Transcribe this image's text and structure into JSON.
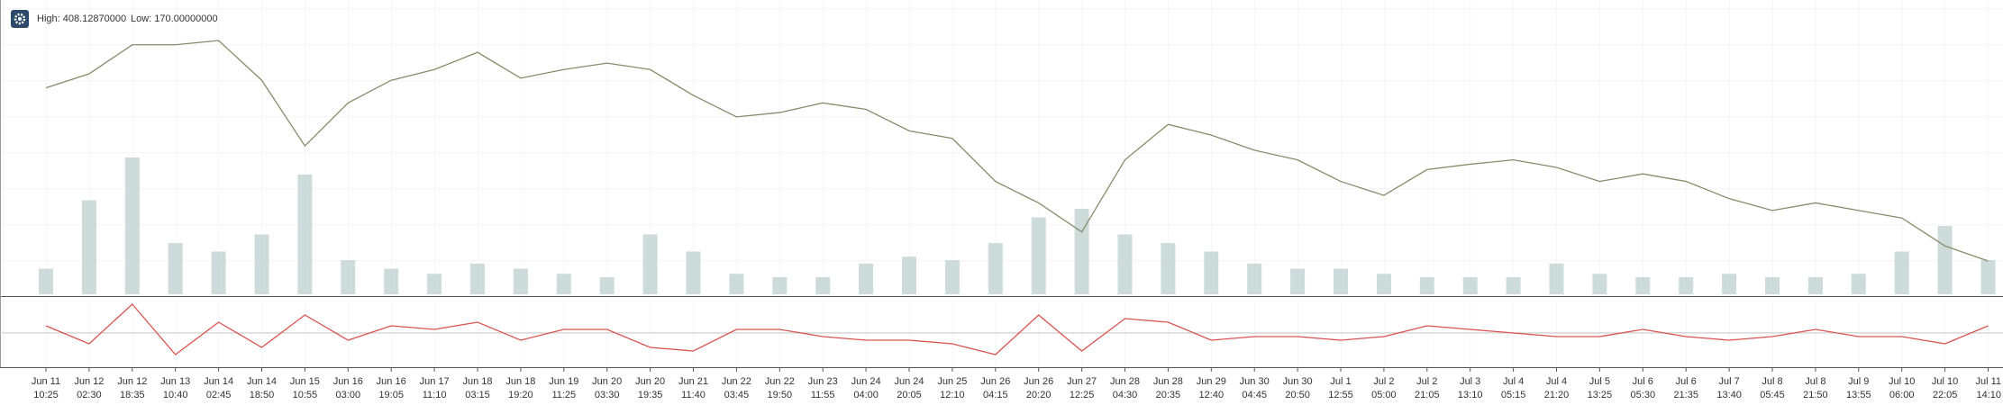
{
  "header": {
    "high": "High: 408.12870000",
    "low": "Low: 170.00000000"
  },
  "chart_data": [
    {
      "type": "line",
      "color": "#8a8a6a",
      "values": [
        348,
        361,
        388,
        388,
        392,
        355,
        294,
        334,
        355,
        365,
        381,
        357,
        365,
        371,
        365,
        341,
        321,
        325,
        334,
        328,
        308,
        301,
        261,
        241,
        214,
        281,
        314,
        304,
        290,
        281,
        261,
        248,
        272,
        277,
        281,
        274,
        261,
        268,
        261,
        245,
        234,
        241,
        234,
        227,
        201,
        187
      ]
    },
    {
      "type": "bar",
      "color": "#b9cccc",
      "values": [
        15,
        55,
        80,
        30,
        25,
        35,
        70,
        20,
        15,
        12,
        18,
        15,
        12,
        10,
        35,
        25,
        12,
        10,
        10,
        18,
        22,
        20,
        30,
        45,
        50,
        35,
        30,
        25,
        18,
        15,
        15,
        12,
        10,
        10,
        10,
        18,
        12,
        10,
        10,
        12,
        10,
        10,
        12,
        25,
        40,
        20
      ]
    },
    {
      "type": "line",
      "color": "#d9534f",
      "categories": [
        "Jun 11",
        "Jun 12",
        "Jun 12",
        "Jun 13",
        "Jun 14",
        "Jun 14",
        "Jun 15",
        "Jun 16",
        "Jun 16",
        "Jun 17",
        "Jun 18",
        "Jun 18",
        "Jun 19",
        "Jun 20",
        "Jun 20",
        "Jun 21",
        "Jun 22",
        "Jun 22",
        "Jun 23",
        "Jun 24",
        "Jun 24",
        "Jun 25",
        "Jun 26",
        "Jun 26",
        "Jun 27",
        "Jun 28",
        "Jun 28",
        "Jun 29",
        "Jun 30",
        "Jun 30",
        "Jul 1",
        "Jul 2",
        "Jul 2",
        "Jul 3",
        "Jul 4",
        "Jul 4",
        "Jul 5",
        "Jul 6",
        "Jul 6",
        "Jul 7",
        "Jul 8",
        "Jul 8",
        "Jul 9",
        "Jul 10",
        "Jul 10",
        "Jul 11"
      ],
      "times": [
        "10:25",
        "02:30",
        "18:35",
        "10:40",
        "02:45",
        "18:50",
        "10:55",
        "03:00",
        "19:05",
        "11:10",
        "03:15",
        "19:20",
        "11:25",
        "03:30",
        "19:35",
        "11:40",
        "03:45",
        "19:50",
        "11:55",
        "04:00",
        "20:05",
        "12:10",
        "04:15",
        "20:20",
        "12:25",
        "04:30",
        "20:35",
        "12:40",
        "04:45",
        "20:50",
        "12:55",
        "05:00",
        "21:05",
        "13:10",
        "05:15",
        "21:20",
        "13:25",
        "05:30",
        "21:35",
        "13:40",
        "05:45",
        "21:50",
        "13:55",
        "06:00",
        "22:05",
        "14:10"
      ],
      "values": [
        2,
        -3,
        8,
        -6,
        3,
        -4,
        5,
        -2,
        2,
        1,
        3,
        -2,
        1,
        1,
        -4,
        -5,
        1,
        1,
        -1,
        -2,
        -2,
        -3,
        -6,
        5,
        -5,
        4,
        3,
        -2,
        -1,
        -1,
        -2,
        -1,
        2,
        1,
        0,
        -1,
        -1,
        1,
        -1,
        -2,
        -1,
        1,
        -1,
        -1,
        -3,
        2
      ]
    }
  ]
}
